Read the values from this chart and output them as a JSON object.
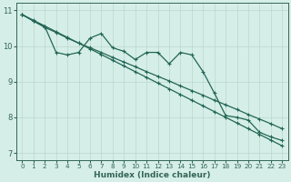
{
  "xlabel": "Humidex (Indice chaleur)",
  "ylabel": "",
  "xlim": [
    -0.5,
    23.5
  ],
  "ylim": [
    6.8,
    11.2
  ],
  "yticks": [
    7,
    8,
    9,
    10,
    11
  ],
  "xticks": [
    0,
    1,
    2,
    3,
    4,
    5,
    6,
    7,
    8,
    9,
    10,
    11,
    12,
    13,
    14,
    15,
    16,
    17,
    18,
    19,
    20,
    21,
    22,
    23
  ],
  "background_color": "#d6eee8",
  "grid_color": "#b8d8cc",
  "line_color": "#226655",
  "line1_y": [
    10.88,
    10.7,
    10.52,
    10.38,
    10.22,
    10.08,
    9.95,
    9.82,
    9.68,
    9.55,
    9.42,
    9.28,
    9.15,
    9.02,
    8.88,
    8.75,
    8.62,
    8.48,
    8.35,
    8.22,
    8.08,
    7.95,
    7.82,
    7.68
  ],
  "line2_y": [
    10.88,
    10.72,
    10.56,
    10.4,
    10.24,
    10.08,
    9.92,
    9.76,
    9.6,
    9.44,
    9.28,
    9.12,
    8.96,
    8.8,
    8.64,
    8.48,
    8.32,
    8.16,
    8.0,
    7.84,
    7.68,
    7.52,
    7.36,
    7.2
  ],
  "line3_y": [
    10.88,
    10.7,
    10.55,
    9.82,
    9.75,
    9.82,
    10.22,
    10.35,
    9.95,
    9.85,
    9.62,
    9.82,
    9.82,
    9.5,
    9.82,
    9.75,
    9.28,
    8.68,
    8.05,
    8.0,
    7.92,
    7.58,
    7.45,
    7.35
  ],
  "marker": "+",
  "markersize": 3,
  "linewidth": 0.9
}
